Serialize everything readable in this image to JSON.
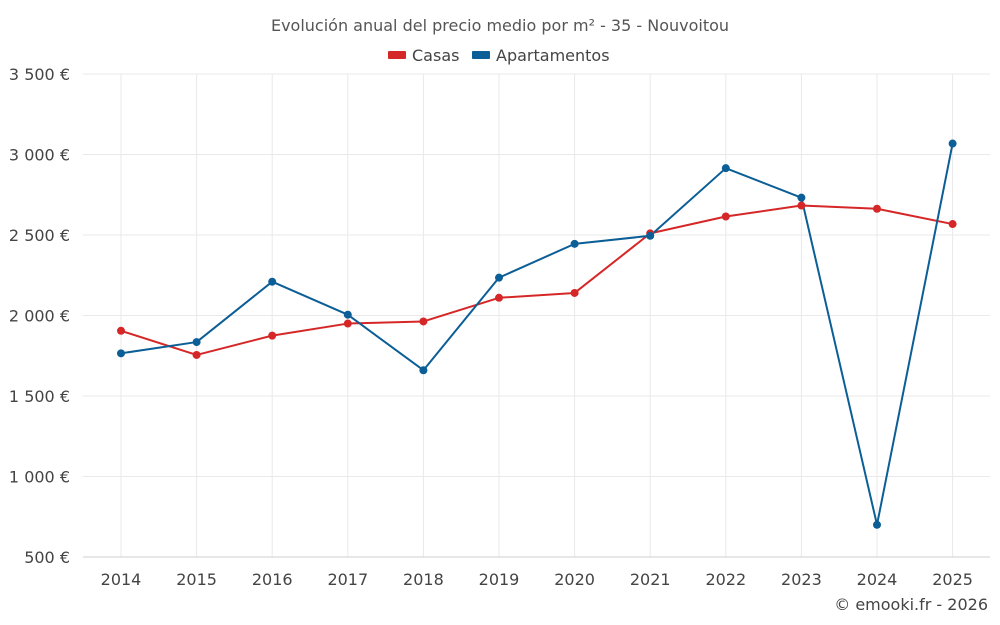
{
  "chart_data": {
    "type": "line",
    "title": "Evolución anual del precio medio por m² - 35 - Nouvoitou",
    "categories": [
      "2014",
      "2015",
      "2016",
      "2017",
      "2018",
      "2019",
      "2020",
      "2021",
      "2022",
      "2023",
      "2024",
      "2025"
    ],
    "series": [
      {
        "name": "Casas",
        "color": "#d62728",
        "values": [
          1905,
          1755,
          1875,
          1950,
          1963,
          2110,
          2140,
          2510,
          2615,
          2683,
          2663,
          2568
        ]
      },
      {
        "name": "Apartamentos",
        "color": "#0b5e96",
        "values": [
          1765,
          1835,
          2210,
          2005,
          1660,
          2235,
          2445,
          2495,
          2915,
          2732,
          700,
          3068
        ]
      }
    ],
    "ylim": [
      500,
      3500
    ],
    "yticks": [
      {
        "value": 500,
        "label": "500 €"
      },
      {
        "value": 1000,
        "label": "1 000 €"
      },
      {
        "value": 1500,
        "label": "1 500 €"
      },
      {
        "value": 2000,
        "label": "2 000 €"
      },
      {
        "value": 2500,
        "label": "2 500 €"
      },
      {
        "value": 3000,
        "label": "3 000 €"
      },
      {
        "value": 3500,
        "label": "3 500 €"
      }
    ],
    "xlabel": "",
    "ylabel": "",
    "grid": true,
    "legend_position": "top-center"
  },
  "credit": "© emooki.fr - 2026"
}
